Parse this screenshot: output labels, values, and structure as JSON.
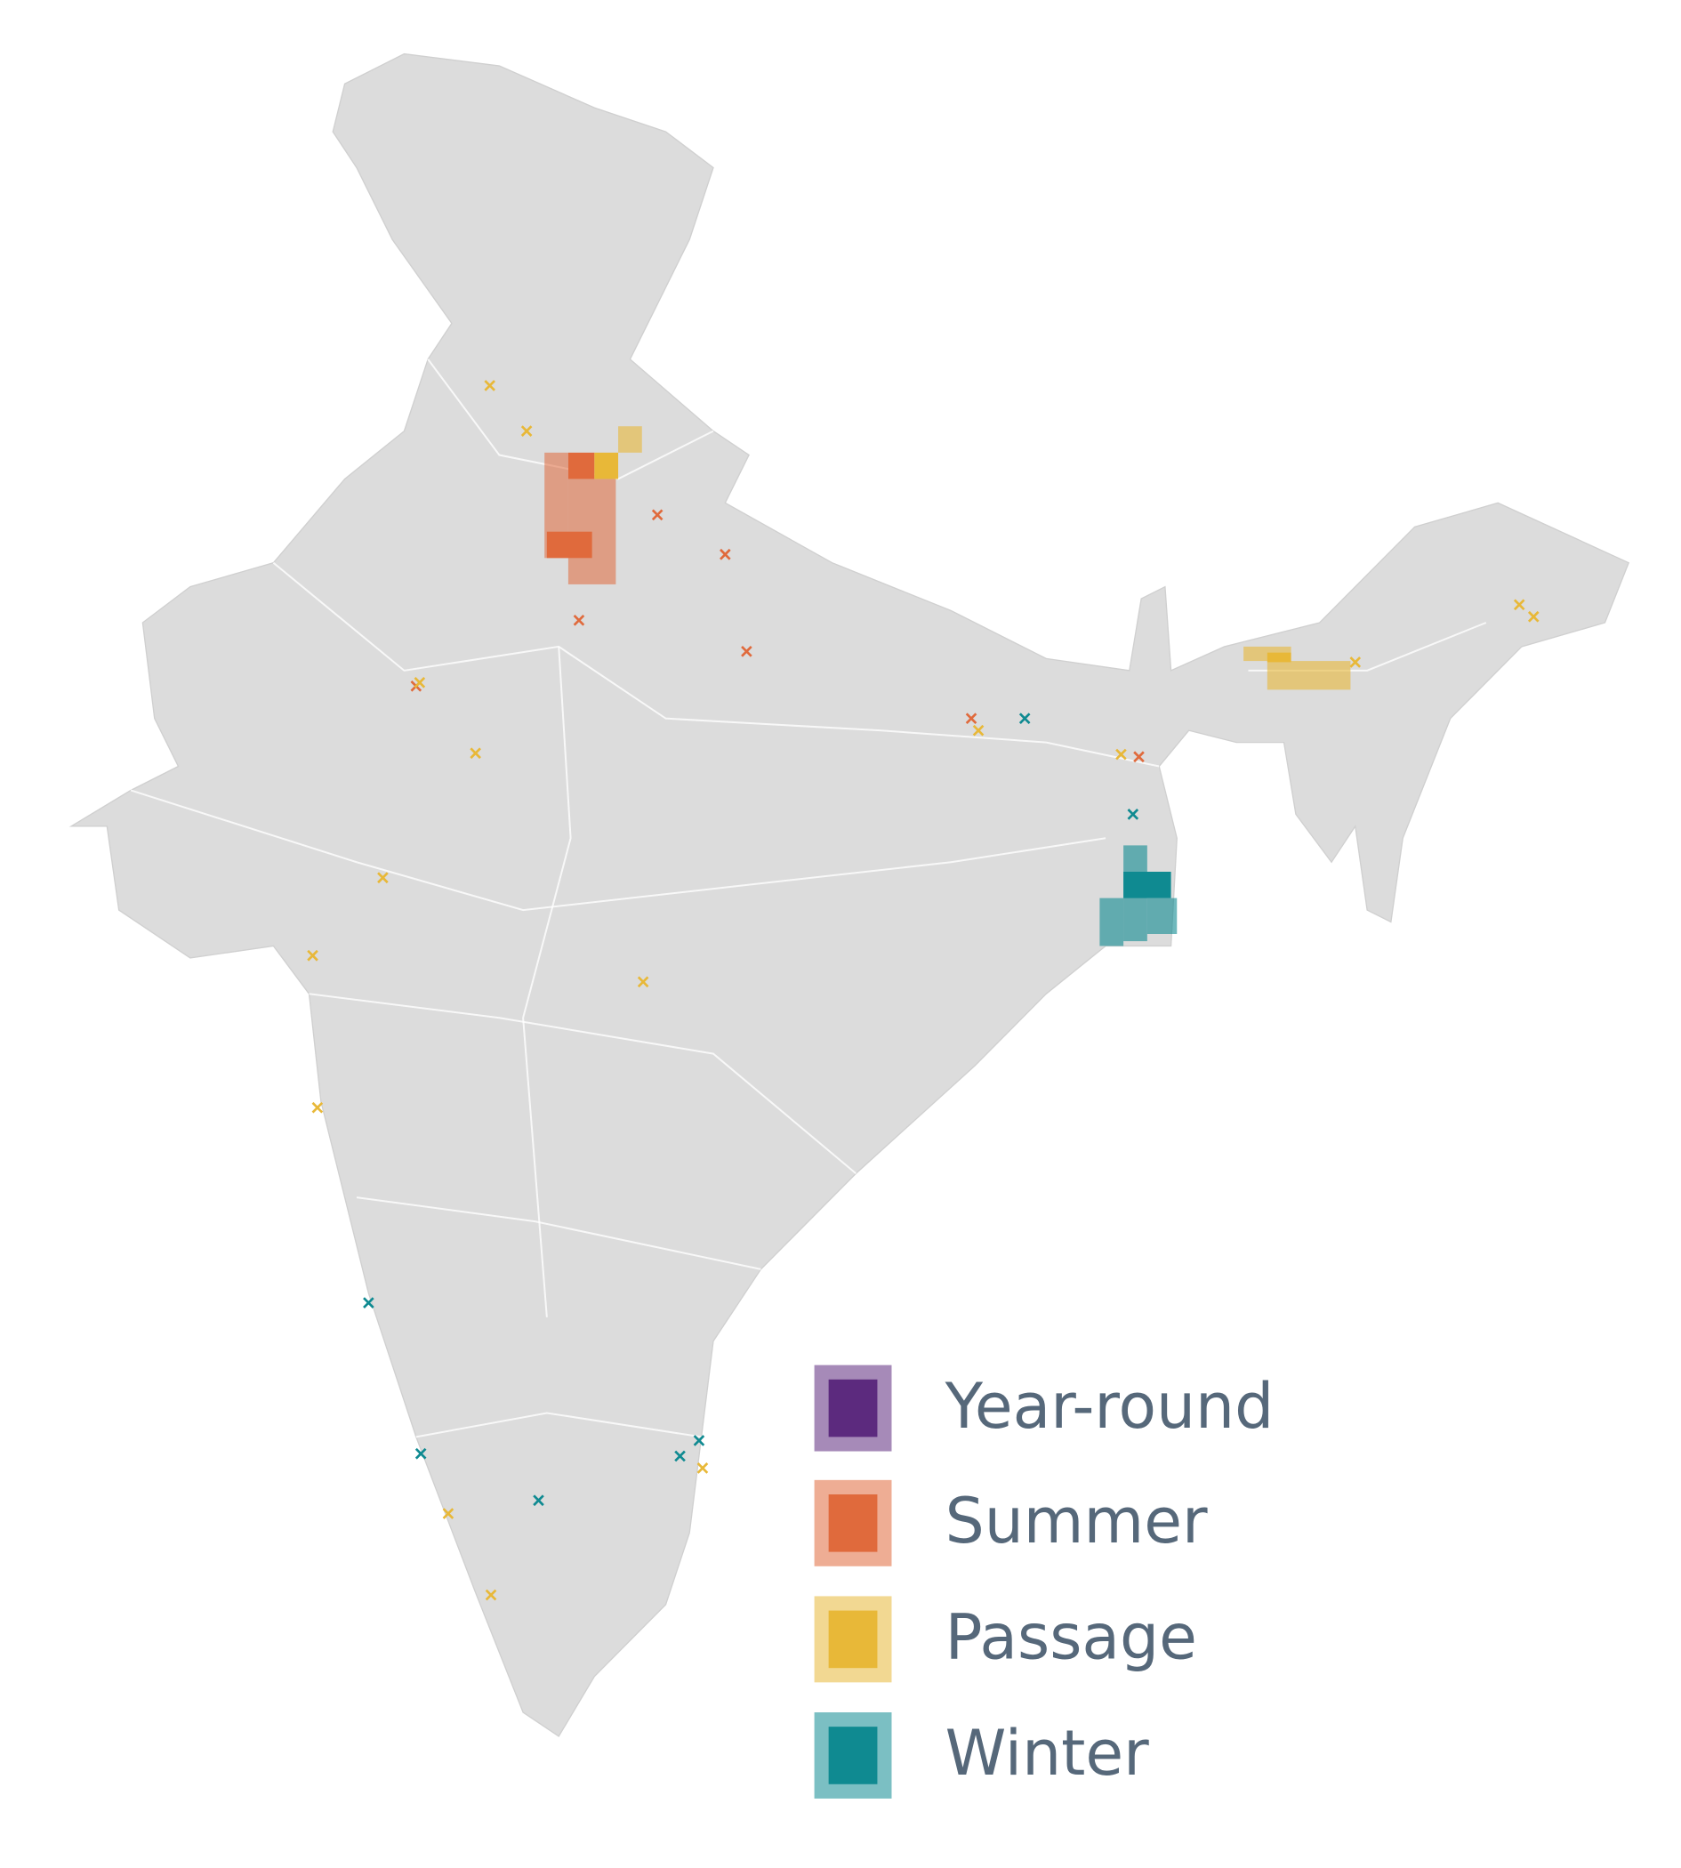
{
  "legend": {
    "items": [
      {
        "label": "Year-round",
        "color": "#5c2a7e"
      },
      {
        "label": "Summer",
        "color": "#e06a3c"
      },
      {
        "label": "Passage",
        "color": "#e8b838"
      },
      {
        "label": "Winter",
        "color": "#0f8a91"
      }
    ]
  }
}
